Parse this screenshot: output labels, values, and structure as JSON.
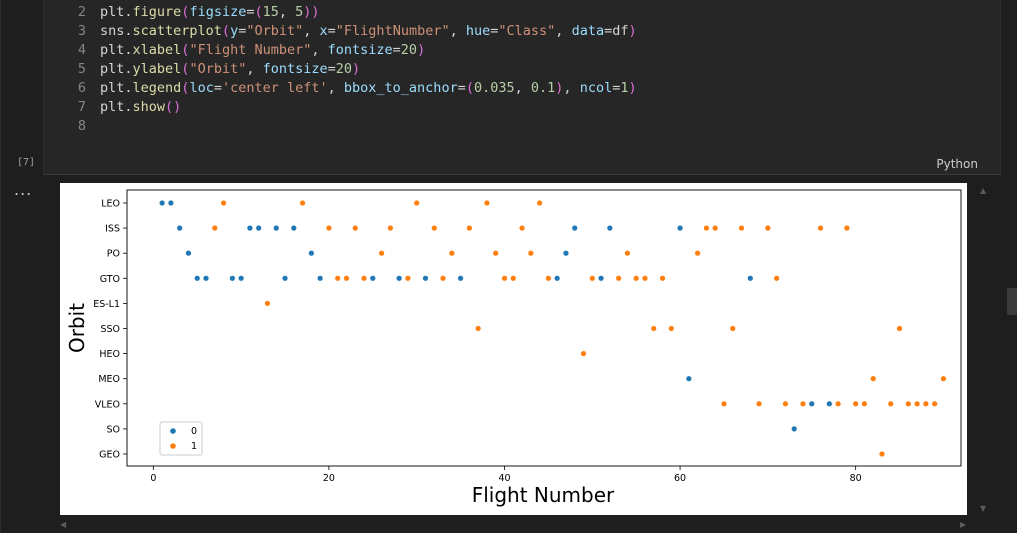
{
  "cell": {
    "exec_count": "[7]",
    "language": "Python",
    "more_label": "...",
    "lines": [
      {
        "no": "2",
        "tokens": [
          [
            "id",
            "plt."
          ],
          [
            "fn",
            "figure"
          ],
          [
            "paren",
            "("
          ],
          [
            "kw",
            "figsize"
          ],
          [
            "op",
            "="
          ],
          [
            "paren",
            "("
          ],
          [
            "num",
            "15"
          ],
          [
            "op",
            ", "
          ],
          [
            "num",
            "5"
          ],
          [
            "paren",
            "))"
          ]
        ]
      },
      {
        "no": "3",
        "tokens": [
          [
            "id",
            "sns."
          ],
          [
            "fn",
            "scatterplot"
          ],
          [
            "paren",
            "("
          ],
          [
            "kw",
            "y"
          ],
          [
            "op",
            "="
          ],
          [
            "str",
            "\"Orbit\""
          ],
          [
            "op",
            ", "
          ],
          [
            "kw",
            "x"
          ],
          [
            "op",
            "="
          ],
          [
            "str",
            "\"FlightNumber\""
          ],
          [
            "op",
            ", "
          ],
          [
            "kw",
            "hue"
          ],
          [
            "op",
            "="
          ],
          [
            "str",
            "\"Class\""
          ],
          [
            "op",
            ", "
          ],
          [
            "kw",
            "data"
          ],
          [
            "op",
            "="
          ],
          [
            "id",
            "df"
          ],
          [
            "paren",
            ")"
          ]
        ]
      },
      {
        "no": "4",
        "tokens": [
          [
            "id",
            "plt."
          ],
          [
            "fn",
            "xlabel"
          ],
          [
            "paren",
            "("
          ],
          [
            "str",
            "\"Flight Number\""
          ],
          [
            "op",
            ", "
          ],
          [
            "kw",
            "fontsize"
          ],
          [
            "op",
            "="
          ],
          [
            "num",
            "20"
          ],
          [
            "paren",
            ")"
          ]
        ]
      },
      {
        "no": "5",
        "tokens": [
          [
            "id",
            "plt."
          ],
          [
            "fn",
            "ylabel"
          ],
          [
            "paren",
            "("
          ],
          [
            "str",
            "\"Orbit\""
          ],
          [
            "op",
            ", "
          ],
          [
            "kw",
            "fontsize"
          ],
          [
            "op",
            "="
          ],
          [
            "num",
            "20"
          ],
          [
            "paren",
            ")"
          ]
        ]
      },
      {
        "no": "6",
        "tokens": [
          [
            "id",
            "plt."
          ],
          [
            "fn",
            "legend"
          ],
          [
            "paren",
            "("
          ],
          [
            "kw",
            "loc"
          ],
          [
            "op",
            "="
          ],
          [
            "str",
            "'center left'"
          ],
          [
            "op",
            ", "
          ],
          [
            "kw",
            "bbox_to_anchor"
          ],
          [
            "op",
            "="
          ],
          [
            "paren",
            "("
          ],
          [
            "num",
            "0.035"
          ],
          [
            "op",
            ", "
          ],
          [
            "num",
            "0.1"
          ],
          [
            "paren",
            ")"
          ],
          [
            "op",
            ", "
          ],
          [
            "kw",
            "ncol"
          ],
          [
            "op",
            "="
          ],
          [
            "num",
            "1"
          ],
          [
            "paren",
            ")"
          ]
        ]
      },
      {
        "no": "7",
        "tokens": [
          [
            "id",
            "plt."
          ],
          [
            "fn",
            "show"
          ],
          [
            "paren",
            "()"
          ]
        ]
      },
      {
        "no": "8",
        "tokens": []
      }
    ]
  },
  "colors": {
    "class0": "#1f77b4",
    "class1": "#ff7f0e"
  },
  "chart_data": {
    "type": "scatter",
    "title": "",
    "xlabel": "Flight Number",
    "ylabel": "Orbit",
    "xlim": [
      -3,
      92
    ],
    "xticks": [
      0,
      20,
      40,
      60,
      80
    ],
    "categories": [
      "LEO",
      "ISS",
      "PO",
      "GTO",
      "ES-L1",
      "SSO",
      "HEO",
      "MEO",
      "VLEO",
      "SO",
      "GEO"
    ],
    "legend": {
      "placement": "lower-left",
      "entries": [
        "0",
        "1"
      ]
    },
    "series": [
      {
        "name": "0",
        "points": [
          [
            1,
            "LEO"
          ],
          [
            2,
            "LEO"
          ],
          [
            3,
            "ISS"
          ],
          [
            4,
            "PO"
          ],
          [
            5,
            "GTO"
          ],
          [
            6,
            "GTO"
          ],
          [
            9,
            "GTO"
          ],
          [
            10,
            "GTO"
          ],
          [
            11,
            "ISS"
          ],
          [
            12,
            "ISS"
          ],
          [
            14,
            "ISS"
          ],
          [
            15,
            "GTO"
          ],
          [
            16,
            "ISS"
          ],
          [
            18,
            "PO"
          ],
          [
            19,
            "GTO"
          ],
          [
            25,
            "GTO"
          ],
          [
            28,
            "GTO"
          ],
          [
            31,
            "GTO"
          ],
          [
            35,
            "GTO"
          ],
          [
            46,
            "GTO"
          ],
          [
            47,
            "PO"
          ],
          [
            48,
            "ISS"
          ],
          [
            51,
            "GTO"
          ],
          [
            52,
            "ISS"
          ],
          [
            60,
            "ISS"
          ],
          [
            61,
            "MEO"
          ],
          [
            68,
            "GTO"
          ],
          [
            73,
            "SO"
          ],
          [
            75,
            "VLEO"
          ],
          [
            77,
            "VLEO"
          ]
        ]
      },
      {
        "name": "1",
        "points": [
          [
            7,
            "ISS"
          ],
          [
            8,
            "LEO"
          ],
          [
            13,
            "ES-L1"
          ],
          [
            17,
            "LEO"
          ],
          [
            20,
            "ISS"
          ],
          [
            21,
            "GTO"
          ],
          [
            22,
            "GTO"
          ],
          [
            23,
            "ISS"
          ],
          [
            24,
            "GTO"
          ],
          [
            26,
            "PO"
          ],
          [
            27,
            "ISS"
          ],
          [
            29,
            "GTO"
          ],
          [
            30,
            "LEO"
          ],
          [
            32,
            "ISS"
          ],
          [
            33,
            "GTO"
          ],
          [
            34,
            "PO"
          ],
          [
            36,
            "ISS"
          ],
          [
            37,
            "SSO"
          ],
          [
            38,
            "LEO"
          ],
          [
            39,
            "PO"
          ],
          [
            40,
            "GTO"
          ],
          [
            41,
            "GTO"
          ],
          [
            42,
            "ISS"
          ],
          [
            43,
            "PO"
          ],
          [
            44,
            "LEO"
          ],
          [
            45,
            "GTO"
          ],
          [
            49,
            "HEO"
          ],
          [
            50,
            "GTO"
          ],
          [
            53,
            "GTO"
          ],
          [
            54,
            "PO"
          ],
          [
            55,
            "GTO"
          ],
          [
            56,
            "GTO"
          ],
          [
            57,
            "SSO"
          ],
          [
            58,
            "GTO"
          ],
          [
            59,
            "SSO"
          ],
          [
            62,
            "PO"
          ],
          [
            63,
            "ISS"
          ],
          [
            64,
            "ISS"
          ],
          [
            65,
            "VLEO"
          ],
          [
            66,
            "SSO"
          ],
          [
            67,
            "ISS"
          ],
          [
            69,
            "VLEO"
          ],
          [
            70,
            "ISS"
          ],
          [
            71,
            "GTO"
          ],
          [
            72,
            "VLEO"
          ],
          [
            74,
            "VLEO"
          ],
          [
            76,
            "ISS"
          ],
          [
            78,
            "VLEO"
          ],
          [
            79,
            "ISS"
          ],
          [
            80,
            "VLEO"
          ],
          [
            81,
            "VLEO"
          ],
          [
            82,
            "MEO"
          ],
          [
            83,
            "GEO"
          ],
          [
            84,
            "VLEO"
          ],
          [
            85,
            "SSO"
          ],
          [
            86,
            "VLEO"
          ],
          [
            87,
            "VLEO"
          ],
          [
            88,
            "VLEO"
          ],
          [
            89,
            "VLEO"
          ],
          [
            90,
            "MEO"
          ]
        ]
      }
    ]
  }
}
